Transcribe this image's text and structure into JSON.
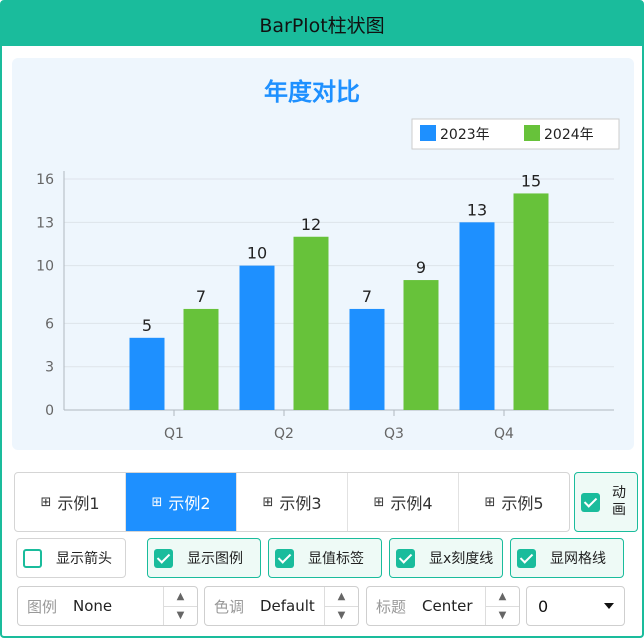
{
  "window": {
    "title": "BarPlot柱状图"
  },
  "chart_data": {
    "type": "bar",
    "title": "年度对比",
    "categories": [
      "Q1",
      "Q2",
      "Q3",
      "Q4"
    ],
    "series": [
      {
        "name": "2023年",
        "values": [
          5,
          10,
          7,
          13
        ],
        "color": "#1e90ff"
      },
      {
        "name": "2024年",
        "values": [
          7,
          12,
          9,
          15
        ],
        "color": "#67c23a"
      }
    ],
    "yticks": [
      0,
      3,
      6,
      10,
      13,
      16
    ],
    "ylim": [
      0,
      16
    ],
    "legend": "top-right",
    "data_labels": true,
    "grid": true
  },
  "tabs": [
    {
      "label": "示例1",
      "active": false
    },
    {
      "label": "示例2",
      "active": true
    },
    {
      "label": "示例3",
      "active": false
    },
    {
      "label": "示例4",
      "active": false
    },
    {
      "label": "示例5",
      "active": false
    }
  ],
  "tab_icon": "grid-icon",
  "animation_toggle": {
    "label": "动画",
    "checked": true
  },
  "options": {
    "show_arrow": {
      "label": "显示箭头",
      "checked": false
    },
    "show_legend": {
      "label": "显示图例",
      "checked": true
    },
    "show_values": {
      "label": "显值标签",
      "checked": true
    },
    "show_x_ticks": {
      "label": "显x刻度线",
      "checked": true
    },
    "show_grid": {
      "label": "显网格线",
      "checked": true
    }
  },
  "spinners": {
    "legend": {
      "label": "图例",
      "value": "None"
    },
    "tone": {
      "label": "色调",
      "value": "Default"
    },
    "title": {
      "label": "标题",
      "value": "Center"
    }
  },
  "combo": {
    "value": "0"
  }
}
